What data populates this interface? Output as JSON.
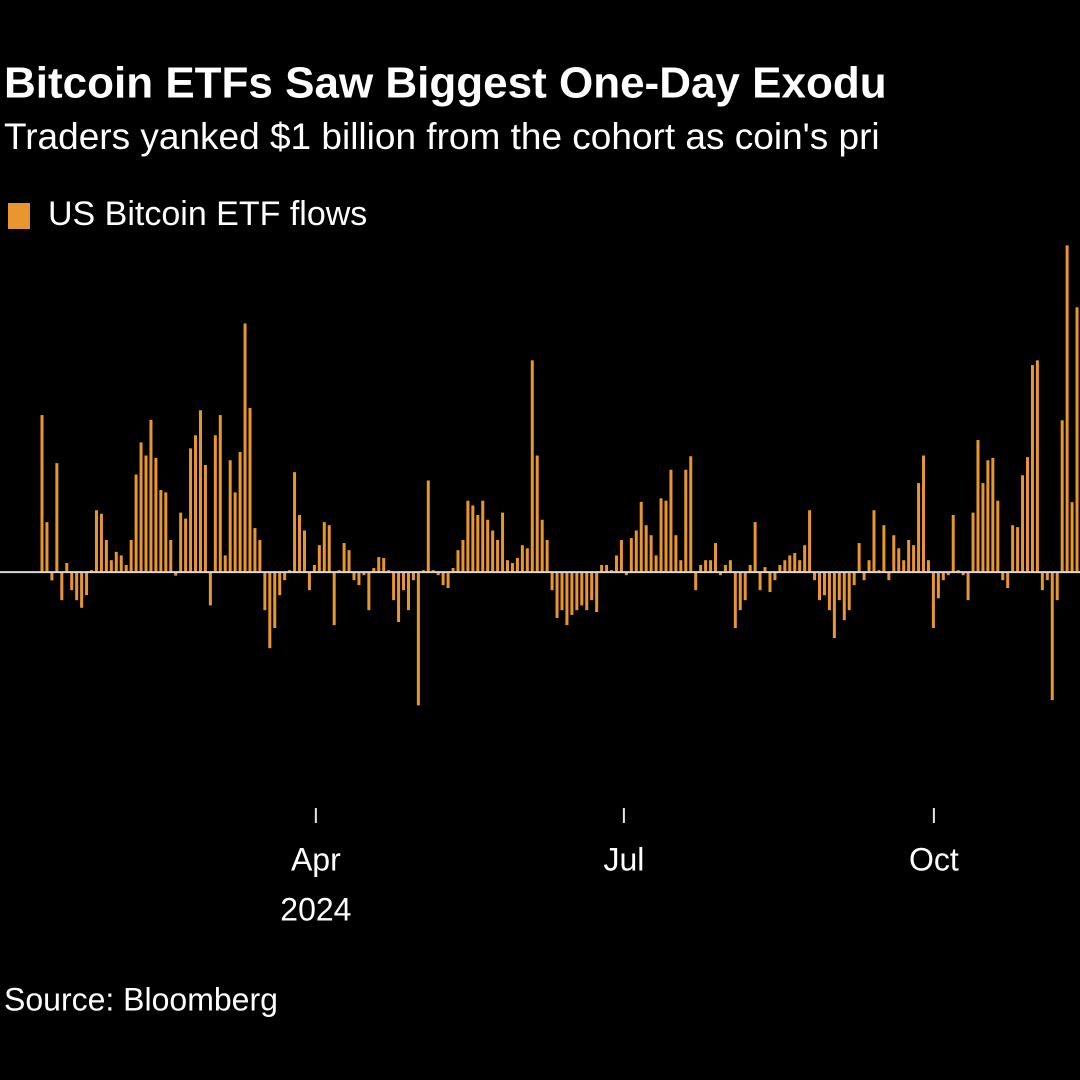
{
  "chart_data": {
    "type": "bar",
    "title": "Bitcoin ETFs Saw Biggest One-Day Exodu",
    "subtitle": "Traders yanked $1 billion from the cohort as coin's pri",
    "source": "Source: Bloomberg",
    "legend": "top-left",
    "ylim": [
      -1000,
      1400
    ],
    "xlim": [
      0,
      209.6
    ],
    "xticks": [
      {
        "value": 55.3,
        "label": [
          "Apr",
          "2024"
        ]
      },
      {
        "value": 117.5,
        "label": [
          "Jul"
        ]
      },
      {
        "value": 180.1,
        "label": [
          "Oct"
        ]
      }
    ],
    "zero_line_color": "#d9d9d9",
    "series": [
      {
        "name": "US Bitcoin ETF flows",
        "color": "#e8962e",
        "values": [
          660,
          210,
          -35,
          458,
          -118,
          38,
          -76,
          -118,
          -150,
          -97,
          8,
          260,
          245,
          135,
          50,
          85,
          70,
          30,
          135,
          410,
          545,
          490,
          640,
          480,
          345,
          335,
          135,
          -15,
          250,
          225,
          520,
          575,
          680,
          450,
          -140,
          575,
          660,
          70,
          470,
          335,
          505,
          1045,
          690,
          185,
          135,
          -160,
          -320,
          -235,
          -97,
          -34,
          8,
          420,
          240,
          175,
          -76,
          30,
          113,
          210,
          197,
          -223,
          8,
          122,
          92,
          -34,
          -55,
          -13,
          -160,
          17,
          63,
          59,
          8,
          -118,
          -210,
          -76,
          -160,
          -34,
          -560,
          8,
          385,
          8,
          -13,
          -55,
          -67,
          17,
          92,
          135,
          300,
          280,
          240,
          300,
          220,
          175,
          135,
          250,
          50,
          38,
          59,
          113,
          100,
          890,
          490,
          220,
          135,
          -76,
          -193,
          -160,
          -223,
          -180,
          -160,
          -140,
          -160,
          -118,
          -168,
          30,
          30,
          8,
          70,
          135,
          -13,
          143,
          175,
          295,
          197,
          155,
          70,
          310,
          300,
          430,
          155,
          50,
          430,
          487,
          -76,
          30,
          50,
          50,
          122,
          -13,
          30,
          50,
          -235,
          -160,
          -118,
          30,
          210,
          -76,
          21,
          -84,
          -34,
          30,
          50,
          70,
          80,
          50,
          113,
          260,
          -34,
          -118,
          -97,
          -160,
          -277,
          -118,
          -202,
          -160,
          -55,
          122,
          -34,
          50,
          260,
          8,
          197,
          -34,
          155,
          100,
          50,
          135,
          113,
          374,
          490,
          50,
          -235,
          -110,
          -34,
          -13,
          240,
          8,
          -13,
          -118,
          250,
          555,
          374,
          470,
          480,
          300,
          -34,
          -67,
          197,
          189,
          407,
          483,
          870,
          890,
          -76,
          -34,
          -538,
          -118,
          638,
          1373,
          294,
          1113
        ]
      }
    ]
  }
}
